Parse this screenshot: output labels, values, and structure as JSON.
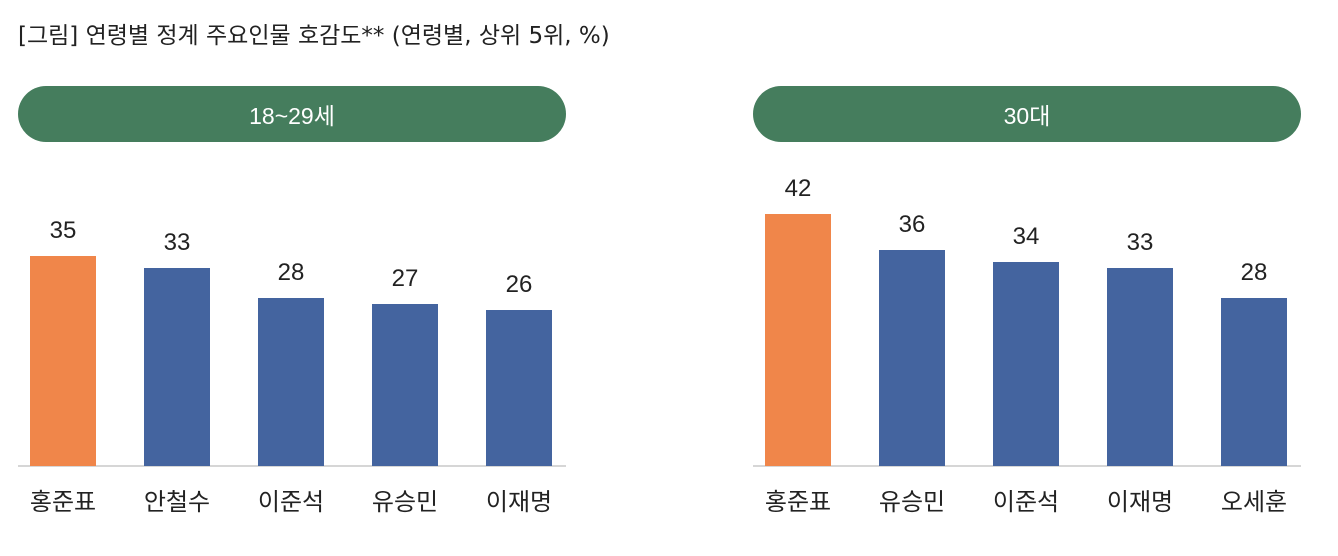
{
  "title": "[그림] 연령별 정계 주요인물 호감도** (연령별, 상위 5위, %)",
  "colors": {
    "header": "#457d5d",
    "highlight": "#f0864a",
    "bar": "#44649f",
    "axis": "#c8c8c8"
  },
  "chart_data": [
    {
      "type": "bar",
      "title": "18~29세",
      "categories": [
        "홍준표",
        "안철수",
        "이준석",
        "유승민",
        "이재명"
      ],
      "values": [
        35,
        33,
        28,
        27,
        26
      ],
      "highlight_index": 0,
      "ylim": [
        0,
        50
      ],
      "grid": false,
      "data_labels": true
    },
    {
      "type": "bar",
      "title": "30대",
      "categories": [
        "홍준표",
        "유승민",
        "이준석",
        "이재명",
        "오세훈"
      ],
      "values": [
        42,
        36,
        34,
        33,
        28
      ],
      "highlight_index": 0,
      "ylim": [
        0,
        50
      ],
      "grid": false,
      "data_labels": true
    }
  ]
}
